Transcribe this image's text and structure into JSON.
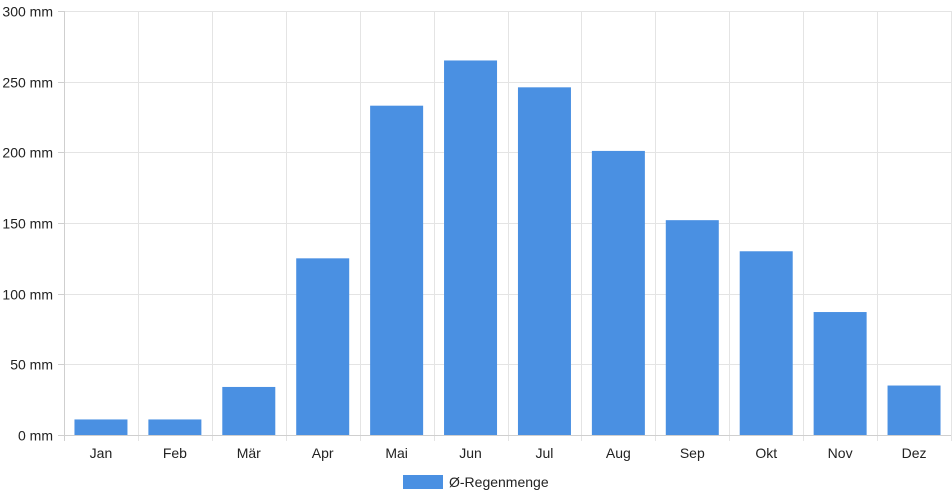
{
  "chart_data": {
    "type": "bar",
    "categories": [
      "Jan",
      "Feb",
      "Mär",
      "Apr",
      "Mai",
      "Jun",
      "Jul",
      "Aug",
      "Sep",
      "Okt",
      "Nov",
      "Dez"
    ],
    "series": [
      {
        "name": "Ø-Regenmenge",
        "values": [
          11,
          11,
          34,
          125,
          233,
          265,
          246,
          201,
          152,
          130,
          87,
          35
        ],
        "color": "#4a90e2"
      }
    ],
    "ylim": [
      0,
      300
    ],
    "y_ticks": [
      "0 mm",
      "50 mm",
      "100 mm",
      "150 mm",
      "200 mm",
      "250 mm",
      "300 mm"
    ],
    "grid": true,
    "legend_position": "bottom-center"
  }
}
